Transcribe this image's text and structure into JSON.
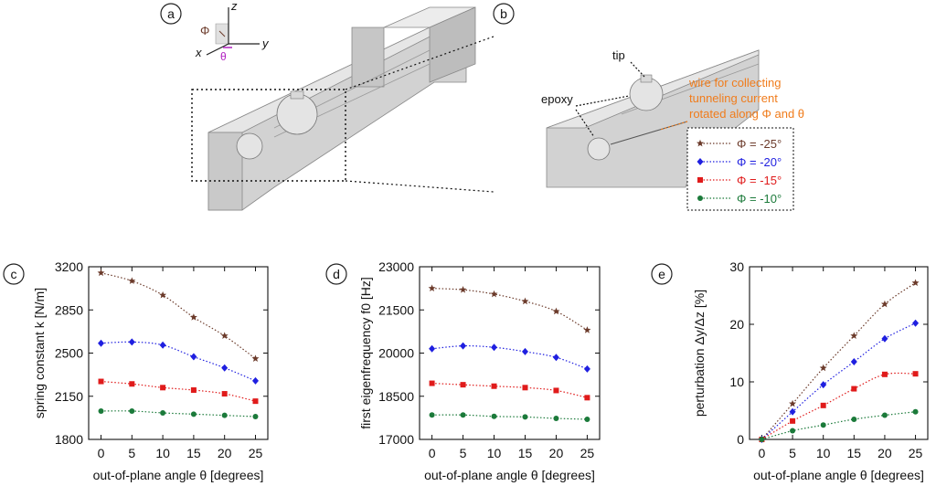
{
  "panel_labels": {
    "a": "a",
    "b": "b",
    "c": "c",
    "d": "d",
    "e": "e"
  },
  "illustration": {
    "axis_z": "z",
    "axis_y": "y",
    "axis_x": "x",
    "phi_symbol": "Φ",
    "theta_symbol": "θ",
    "tip_label": "tip",
    "epoxy_label": "epoxy",
    "wire_line1": "wire for collecting",
    "wire_line2": "tunneling current",
    "wire_line3": "rotated along Φ and θ",
    "wire_color": "#f07c1c"
  },
  "legend": {
    "items": [
      {
        "label": "Φ = -25°",
        "color": "#6b3a2a",
        "marker": "star"
      },
      {
        "label": "Φ = -20°",
        "color": "#1f1fe0",
        "marker": "diamond"
      },
      {
        "label": "Φ = -15°",
        "color": "#e01b1b",
        "marker": "square"
      },
      {
        "label": "Φ = -10°",
        "color": "#1b7a3a",
        "marker": "circle"
      }
    ]
  },
  "chart_data": [
    {
      "type": "line",
      "panel": "c",
      "title": "",
      "xlabel": "out-of-plane angle θ [degrees]",
      "ylabel": "spring constant k [N/m]",
      "x": [
        0,
        5,
        10,
        15,
        20,
        25
      ],
      "xticks": [
        "0",
        "5",
        "10",
        "15",
        "20",
        "25"
      ],
      "xlim": [
        -2,
        27
      ],
      "ylim": [
        1800,
        3200
      ],
      "yticks": [
        1800,
        2150,
        2500,
        2850,
        3200
      ],
      "series": [
        {
          "name": "Φ = -25°",
          "marker": "star",
          "color": "#6b3a2a",
          "values": [
            3150,
            3085,
            2970,
            2790,
            2640,
            2455
          ]
        },
        {
          "name": "Φ = -20°",
          "marker": "diamond",
          "color": "#1f1fe0",
          "values": [
            2580,
            2590,
            2565,
            2470,
            2380,
            2275
          ]
        },
        {
          "name": "Φ = -15°",
          "marker": "square",
          "color": "#e01b1b",
          "values": [
            2270,
            2250,
            2220,
            2200,
            2170,
            2110
          ]
        },
        {
          "name": "Φ = -10°",
          "marker": "circle",
          "color": "#1b7a3a",
          "values": [
            2030,
            2030,
            2015,
            2005,
            1995,
            1985
          ]
        }
      ]
    },
    {
      "type": "line",
      "panel": "d",
      "title": "",
      "xlabel": "out-of-plane angle θ [degrees]",
      "ylabel": "first eigenfrequency f0 [Hz]",
      "x": [
        0,
        5,
        10,
        15,
        20,
        25
      ],
      "xticks": [
        "0",
        "5",
        "10",
        "15",
        "20",
        "25"
      ],
      "xlim": [
        -2,
        27
      ],
      "ylim": [
        17000,
        23000
      ],
      "yticks": [
        17000,
        18500,
        20000,
        21500,
        23000
      ],
      "series": [
        {
          "name": "Φ = -25°",
          "marker": "star",
          "color": "#6b3a2a",
          "values": [
            22250,
            22200,
            22050,
            21800,
            21450,
            20800
          ]
        },
        {
          "name": "Φ = -20°",
          "marker": "diamond",
          "color": "#1f1fe0",
          "values": [
            20150,
            20250,
            20200,
            20050,
            19850,
            19450
          ]
        },
        {
          "name": "Φ = -15°",
          "marker": "square",
          "color": "#e01b1b",
          "values": [
            18950,
            18900,
            18850,
            18800,
            18700,
            18450
          ]
        },
        {
          "name": "Φ = -10°",
          "marker": "circle",
          "color": "#1b7a3a",
          "values": [
            17850,
            17850,
            17800,
            17780,
            17730,
            17700
          ]
        }
      ]
    },
    {
      "type": "line",
      "panel": "e",
      "title": "",
      "xlabel": "out-of-plane angle θ [degrees]",
      "ylabel": "perturbation Δy/Δz [%]",
      "x": [
        0,
        5,
        10,
        15,
        20,
        25
      ],
      "xticks": [
        "0",
        "5",
        "10",
        "15",
        "20",
        "25"
      ],
      "xlim": [
        -2,
        27
      ],
      "ylim": [
        0,
        30
      ],
      "yticks": [
        0,
        10,
        20,
        30
      ],
      "series": [
        {
          "name": "Φ = -25°",
          "marker": "star",
          "color": "#6b3a2a",
          "values": [
            0,
            6.2,
            12.4,
            18.0,
            23.5,
            27.2
          ]
        },
        {
          "name": "Φ = -20°",
          "marker": "diamond",
          "color": "#1f1fe0",
          "values": [
            0,
            4.8,
            9.5,
            13.5,
            17.5,
            20.2
          ]
        },
        {
          "name": "Φ = -15°",
          "marker": "square",
          "color": "#e01b1b",
          "values": [
            0,
            3.2,
            5.9,
            8.8,
            11.3,
            11.4
          ]
        },
        {
          "name": "Φ = -10°",
          "marker": "circle",
          "color": "#1b7a3a",
          "values": [
            0,
            1.5,
            2.5,
            3.5,
            4.2,
            4.8
          ]
        }
      ]
    }
  ]
}
